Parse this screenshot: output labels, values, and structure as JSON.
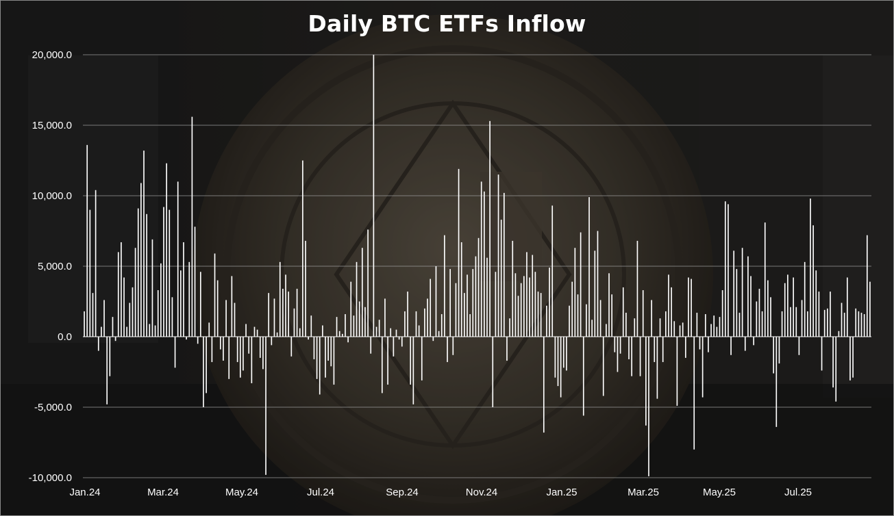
{
  "chart_data": {
    "type": "bar",
    "title": "Daily BTC ETFs Inflow",
    "xlabel": "",
    "ylabel": "",
    "ylim": [
      -10000,
      20000
    ],
    "y_ticks": [
      "20,000.0",
      "15,000.0",
      "10,000.0",
      "5,000.0",
      "0.0",
      "-5,000.0",
      "-10,000.0"
    ],
    "y_tick_values": [
      20000,
      15000,
      10000,
      5000,
      0,
      -5000,
      -10000
    ],
    "x_ticks": [
      "Jan.24",
      "Mar.24",
      "May.24",
      "Jul.24",
      "Sep.24",
      "Nov.24",
      "Jan.25",
      "Mar.25",
      "May.25",
      "Jul.25"
    ],
    "grid": true,
    "bar_color": "#ffffff",
    "x_range": [
      "2024-01-11",
      "2025-09-20"
    ],
    "series": [
      {
        "values": [
          1800,
          13600,
          9000,
          3100,
          10400,
          -1000,
          700,
          2600,
          -4800,
          -2800,
          1400,
          -300,
          6000,
          6700,
          4200,
          700,
          2400,
          3500,
          6300,
          9100,
          10900,
          13200,
          8700,
          900,
          6900,
          800,
          3300,
          5200,
          9200,
          12300,
          9000,
          2800,
          -2200,
          11000,
          4700,
          6700,
          -200,
          5300,
          15600,
          7800,
          -500,
          4600,
          -5000,
          -4000,
          1000,
          -1800,
          5900,
          4000,
          -900,
          -1700,
          2600,
          -3000,
          4300,
          2400,
          -1800,
          -2900,
          -2400,
          900,
          -1200,
          -3300,
          700,
          500,
          -1500,
          -2300,
          -9800,
          3100,
          -600,
          2700,
          300,
          5300,
          3400,
          4400,
          3200,
          -1400,
          2000,
          3400,
          600,
          12500,
          6800,
          -200,
          1500,
          -1600,
          -3000,
          -4100,
          800,
          -2900,
          -1700,
          -2100,
          -3400,
          1400,
          400,
          200,
          1600,
          -400,
          3900,
          1500,
          5300,
          2500,
          6300,
          2100,
          7600,
          -1200,
          20000,
          700,
          1200,
          -4000,
          2700,
          -3400,
          600,
          -1400,
          500,
          -200,
          -700,
          1800,
          3200,
          -3400,
          -4800,
          1800,
          800,
          -3100,
          2000,
          2700,
          4100,
          -300,
          5000,
          400,
          1600,
          7200,
          -1800,
          4800,
          -1300,
          3800,
          11900,
          6700,
          3100,
          4400,
          1600,
          4800,
          5700,
          7000,
          11000,
          10300,
          5600,
          15300,
          -5000,
          4600,
          11500,
          8300,
          10200,
          -1700,
          1300,
          6800,
          4500,
          2900,
          3800,
          4300,
          6000,
          4200,
          5800,
          4600,
          3200,
          3100,
          -6800,
          2200,
          4900,
          9300,
          -2900,
          -3500,
          -4300,
          -2200,
          -2400,
          2200,
          3900,
          6300,
          3000,
          7400,
          -5600,
          2300,
          9900,
          1200,
          6100,
          7500,
          2600,
          -4200,
          900,
          4500,
          3000,
          -1100,
          -2500,
          -1200,
          3500,
          1700,
          -1600,
          -2800,
          1300,
          6800,
          -2800,
          3300,
          -6300,
          -9900,
          2600,
          -1800,
          -4400,
          1300,
          -1800,
          1800,
          4400,
          3500,
          1100,
          -4900,
          800,
          1000,
          -1500,
          4200,
          4100,
          -8000,
          1700,
          -900,
          -4300,
          1600,
          -1100,
          900,
          1500,
          700,
          1400,
          3300,
          9600,
          9400,
          -1300,
          6100,
          4800,
          1700,
          6300,
          -1000,
          5700,
          4300,
          -600,
          2500,
          3400,
          1800,
          8100,
          4000,
          2800,
          -2600,
          -6400,
          -1900,
          1800,
          3800,
          4400,
          2100,
          4200,
          2100,
          -1300,
          2600,
          5300,
          1800,
          9800,
          7900,
          4700,
          3200,
          -2400,
          1900,
          2000,
          3200,
          -3600,
          -4600,
          400,
          2400,
          1700,
          4200,
          -3100,
          -2900,
          2000,
          1800,
          1700,
          1600,
          7200,
          3900
        ]
      }
    ]
  }
}
